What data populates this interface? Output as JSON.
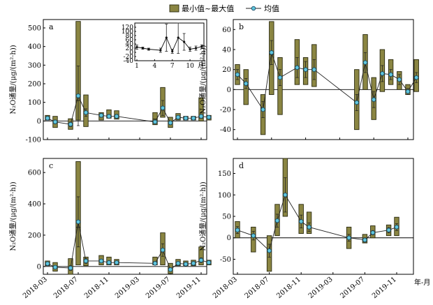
{
  "legend": {
    "range_label": "最小值~最大值",
    "mean_label": "均值",
    "box_color": "#8a8542",
    "mean_color": "#5fc7dd"
  },
  "shared": {
    "x_tick_labels": [
      "2018-03",
      "2018-07",
      "2018-11",
      "2019-03",
      "2019-07",
      "2019-11"
    ],
    "x_unit_label": "年-月",
    "y_label": "N₂O通量/(μg/(m²·h))"
  },
  "chart_data": [
    {
      "panel": "a",
      "type": "bar",
      "y_ticks": [
        -100,
        0,
        100,
        200,
        300,
        400,
        500
      ],
      "ylim": [
        -100,
        545
      ],
      "series": [
        {
          "name": "最小值~最大值",
          "role": "range",
          "values": [
            {
              "x": "2018-03",
              "min": 5,
              "max": 30,
              "median": 15
            },
            {
              "x": "2018-04",
              "min": -35,
              "max": 25,
              "median": -5
            },
            {
              "x": "2018-06",
              "min": -45,
              "max": 12,
              "median": -20
            },
            {
              "x": "2018-07",
              "min": 5,
              "max": 535,
              "median": 110
            },
            {
              "x": "2018-08",
              "min": -30,
              "max": 140,
              "median": 45
            },
            {
              "x": "2018-10",
              "min": 5,
              "max": 45,
              "median": 25
            },
            {
              "x": "2018-11",
              "min": 15,
              "max": 60,
              "median": 30
            },
            {
              "x": "2018-12",
              "min": 10,
              "max": 55,
              "median": 25
            },
            {
              "x": "2019-05",
              "min": -20,
              "max": 45,
              "median": 10
            },
            {
              "x": "2019-06",
              "min": 20,
              "max": 180,
              "median": 70
            },
            {
              "x": "2019-07",
              "min": -35,
              "max": 20,
              "median": -10
            },
            {
              "x": "2019-08",
              "min": 5,
              "max": 40,
              "median": 20
            },
            {
              "x": "2019-09",
              "min": 5,
              "max": 25,
              "median": 15
            },
            {
              "x": "2019-10",
              "min": 5,
              "max": 25,
              "median": 15
            },
            {
              "x": "2019-11",
              "min": 0,
              "max": 125,
              "median": 15
            },
            {
              "x": "2019-12",
              "min": 5,
              "max": 30,
              "median": 15
            }
          ]
        },
        {
          "name": "均值",
          "role": "mean",
          "values": [
            {
              "x": "2018-03",
              "y": 15,
              "err": 10
            },
            {
              "x": "2018-04",
              "y": -5,
              "err": 10
            },
            {
              "x": "2018-06",
              "y": -18,
              "err": 12
            },
            {
              "x": "2018-07",
              "y": 135,
              "err": 160
            },
            {
              "x": "2018-08",
              "y": 45,
              "err": 20
            },
            {
              "x": "2018-10",
              "y": 30,
              "err": 10
            },
            {
              "x": "2018-11",
              "y": 25,
              "err": 10
            },
            {
              "x": "2018-12",
              "y": 25,
              "err": 10
            },
            {
              "x": "2019-05",
              "y": -5,
              "err": 10
            },
            {
              "x": "2019-06",
              "y": 70,
              "err": 40
            },
            {
              "x": "2019-07",
              "y": -10,
              "err": 10
            },
            {
              "x": "2019-08",
              "y": 20,
              "err": 8
            },
            {
              "x": "2019-09",
              "y": 15,
              "err": 5
            },
            {
              "x": "2019-10",
              "y": 15,
              "err": 5
            },
            {
              "x": "2019-11",
              "y": 25,
              "err": 10
            },
            {
              "x": "2019-12",
              "y": 20,
              "err": 5
            }
          ]
        }
      ],
      "inset": {
        "type": "line",
        "x_tick_labels": [
          "1",
          "4",
          "7",
          "10"
        ],
        "x_unit_label": "月",
        "y_ticks": [
          -40,
          -20,
          0,
          20,
          40,
          60,
          80,
          100,
          120
        ],
        "xlim": [
          1,
          12
        ],
        "ylim": [
          -40,
          140
        ],
        "points": [
          {
            "x": 1,
            "y": 25,
            "err": 10
          },
          {
            "x": 2,
            "y": 20,
            "err": 5
          },
          {
            "x": 3,
            "y": 15,
            "err": 5
          },
          {
            "x": 5,
            "y": 10,
            "err": 10
          },
          {
            "x": 6,
            "y": 70,
            "err": 65
          },
          {
            "x": 7,
            "y": 5,
            "err": 10
          },
          {
            "x": 8,
            "y": 70,
            "err": 75
          },
          {
            "x": 9,
            "y": 50,
            "err": 40
          },
          {
            "x": 10,
            "y": 15,
            "err": 10
          },
          {
            "x": 11,
            "y": 20,
            "err": 10
          },
          {
            "x": 12,
            "y": 28,
            "err": 8
          }
        ]
      }
    },
    {
      "panel": "b",
      "type": "bar",
      "y_ticks": [
        -40,
        -20,
        0,
        20,
        40,
        60
      ],
      "ylim": [
        -50,
        70
      ],
      "series": [
        {
          "name": "最小值~最大值",
          "role": "range",
          "values": [
            {
              "x": "2018-03",
              "min": 5,
              "max": 25,
              "median": 15
            },
            {
              "x": "2018-04",
              "min": -15,
              "max": 20,
              "median": 5
            },
            {
              "x": "2018-06",
              "min": -45,
              "max": -5,
              "median": -20
            },
            {
              "x": "2018-07",
              "min": -5,
              "max": 68,
              "median": 35
            },
            {
              "x": "2018-08",
              "min": -25,
              "max": 32,
              "median": 12
            },
            {
              "x": "2018-10",
              "min": 5,
              "max": 50,
              "median": 22
            },
            {
              "x": "2018-11",
              "min": 5,
              "max": 32,
              "median": 20
            },
            {
              "x": "2018-12",
              "min": 3,
              "max": 45,
              "median": 20
            },
            {
              "x": "2019-05",
              "min": -40,
              "max": 20,
              "median": -12
            },
            {
              "x": "2019-06",
              "min": 0,
              "max": 55,
              "median": 27
            },
            {
              "x": "2019-07",
              "min": -30,
              "max": 12,
              "median": -10
            },
            {
              "x": "2019-08",
              "min": -2,
              "max": 40,
              "median": 16
            },
            {
              "x": "2019-09",
              "min": 5,
              "max": 30,
              "median": 15
            },
            {
              "x": "2019-10",
              "min": 0,
              "max": 18,
              "median": 10
            },
            {
              "x": "2019-11",
              "min": -5,
              "max": 5,
              "median": -2
            },
            {
              "x": "2019-12",
              "min": -2,
              "max": 30,
              "median": 12
            }
          ]
        },
        {
          "name": "均值",
          "role": "mean",
          "values": [
            {
              "x": "2018-03",
              "y": 15,
              "err": 5
            },
            {
              "x": "2018-04",
              "y": 6,
              "err": 5
            },
            {
              "x": "2018-06",
              "y": -20,
              "err": 8
            },
            {
              "x": "2018-07",
              "y": 37,
              "err": 12
            },
            {
              "x": "2018-08",
              "y": 12,
              "err": 8
            },
            {
              "x": "2018-10",
              "y": 22,
              "err": 10
            },
            {
              "x": "2018-11",
              "y": 20,
              "err": 8
            },
            {
              "x": "2018-12",
              "y": 20,
              "err": 10
            },
            {
              "x": "2019-05",
              "y": -13,
              "err": 8
            },
            {
              "x": "2019-06",
              "y": 27,
              "err": 10
            },
            {
              "x": "2019-07",
              "y": -10,
              "err": 8
            },
            {
              "x": "2019-08",
              "y": 16,
              "err": 8
            },
            {
              "x": "2019-09",
              "y": 15,
              "err": 5
            },
            {
              "x": "2019-10",
              "y": 10,
              "err": 5
            },
            {
              "x": "2019-11",
              "y": -2,
              "err": 3
            },
            {
              "x": "2019-12",
              "y": 12,
              "err": 5
            }
          ]
        }
      ]
    },
    {
      "panel": "c",
      "type": "bar",
      "y_ticks": [
        0,
        200,
        400,
        600
      ],
      "ylim": [
        -50,
        690
      ],
      "series": [
        {
          "name": "最小值~最大值",
          "role": "range",
          "values": [
            {
              "x": "2018-03",
              "min": 5,
              "max": 35,
              "median": 20
            },
            {
              "x": "2018-04",
              "min": -30,
              "max": 25,
              "median": -5
            },
            {
              "x": "2018-06",
              "min": -50,
              "max": 50,
              "median": -10
            },
            {
              "x": "2018-07",
              "min": 10,
              "max": 670,
              "median": 250
            },
            {
              "x": "2018-08",
              "min": 5,
              "max": 60,
              "median": 30
            },
            {
              "x": "2018-10",
              "min": 10,
              "max": 70,
              "median": 35
            },
            {
              "x": "2018-11",
              "min": 10,
              "max": 60,
              "median": 30
            },
            {
              "x": "2018-12",
              "min": 10,
              "max": 45,
              "median": 25
            },
            {
              "x": "2019-05",
              "min": 10,
              "max": 60,
              "median": 30
            },
            {
              "x": "2019-06",
              "min": 10,
              "max": 215,
              "median": 100
            },
            {
              "x": "2019-07",
              "min": -45,
              "max": 20,
              "median": -10
            },
            {
              "x": "2019-08",
              "min": 5,
              "max": 45,
              "median": 25
            },
            {
              "x": "2019-09",
              "min": 5,
              "max": 35,
              "median": 20
            },
            {
              "x": "2019-10",
              "min": 5,
              "max": 40,
              "median": 20
            },
            {
              "x": "2019-11",
              "min": 10,
              "max": 125,
              "median": 40
            },
            {
              "x": "2019-12",
              "min": 10,
              "max": 40,
              "median": 25
            }
          ]
        },
        {
          "name": "均值",
          "role": "mean",
          "values": [
            {
              "x": "2018-03",
              "y": 18,
              "err": 8
            },
            {
              "x": "2018-04",
              "y": -5,
              "err": 10
            },
            {
              "x": "2018-06",
              "y": -10,
              "err": 15
            },
            {
              "x": "2018-07",
              "y": 285,
              "err": 160
            },
            {
              "x": "2018-08",
              "y": 35,
              "err": 15
            },
            {
              "x": "2018-10",
              "y": 35,
              "err": 10
            },
            {
              "x": "2018-11",
              "y": 25,
              "err": 10
            },
            {
              "x": "2018-12",
              "y": 25,
              "err": 8
            },
            {
              "x": "2019-05",
              "y": 20,
              "err": 10
            },
            {
              "x": "2019-06",
              "y": 105,
              "err": 40
            },
            {
              "x": "2019-07",
              "y": -20,
              "err": 10
            },
            {
              "x": "2019-08",
              "y": 20,
              "err": 8
            },
            {
              "x": "2019-09",
              "y": 15,
              "err": 5
            },
            {
              "x": "2019-10",
              "y": 20,
              "err": 8
            },
            {
              "x": "2019-11",
              "y": 40,
              "err": 15
            },
            {
              "x": "2019-12",
              "y": 25,
              "err": 8
            }
          ]
        }
      ]
    },
    {
      "panel": "d",
      "type": "bar",
      "y_ticks": [
        -50,
        0,
        50,
        100,
        150
      ],
      "ylim": [
        -85,
        185
      ],
      "series": [
        {
          "name": "最小值~最大值",
          "role": "range",
          "values": [
            {
              "x": "2018-03",
              "min": 0,
              "max": 38,
              "median": 18
            },
            {
              "x": "2018-05",
              "min": -33,
              "max": 25,
              "median": 5
            },
            {
              "x": "2018-07",
              "min": -78,
              "max": 5,
              "median": -30
            },
            {
              "x": "2018-08",
              "min": 5,
              "max": 78,
              "median": 40
            },
            {
              "x": "2018-09",
              "min": 50,
              "max": 185,
              "median": 100
            },
            {
              "x": "2018-11",
              "min": 10,
              "max": 78,
              "median": 38
            },
            {
              "x": "2018-12",
              "min": 10,
              "max": 60,
              "median": 25
            },
            {
              "x": "2019-05",
              "min": -25,
              "max": 25,
              "median": 0
            },
            {
              "x": "2019-07",
              "min": -12,
              "max": 8,
              "median": -5
            },
            {
              "x": "2019-08",
              "min": 0,
              "max": 28,
              "median": 12
            },
            {
              "x": "2019-10",
              "min": 5,
              "max": 30,
              "median": 18
            },
            {
              "x": "2019-11",
              "min": 5,
              "max": 48,
              "median": 25
            }
          ]
        },
        {
          "name": "均值",
          "role": "mean",
          "values": [
            {
              "x": "2018-03",
              "y": 18,
              "err": 8
            },
            {
              "x": "2018-05",
              "y": 5,
              "err": 10
            },
            {
              "x": "2018-07",
              "y": -30,
              "err": 15
            },
            {
              "x": "2018-08",
              "y": 40,
              "err": 15
            },
            {
              "x": "2018-09",
              "y": 100,
              "err": 40
            },
            {
              "x": "2018-11",
              "y": 38,
              "err": 15
            },
            {
              "x": "2018-12",
              "y": 25,
              "err": 10
            },
            {
              "x": "2019-05",
              "y": 0,
              "err": 8
            },
            {
              "x": "2019-07",
              "y": -5,
              "err": 5
            },
            {
              "x": "2019-08",
              "y": 12,
              "err": 5
            },
            {
              "x": "2019-10",
              "y": 18,
              "err": 6
            },
            {
              "x": "2019-11",
              "y": 25,
              "err": 8
            }
          ]
        }
      ]
    }
  ]
}
